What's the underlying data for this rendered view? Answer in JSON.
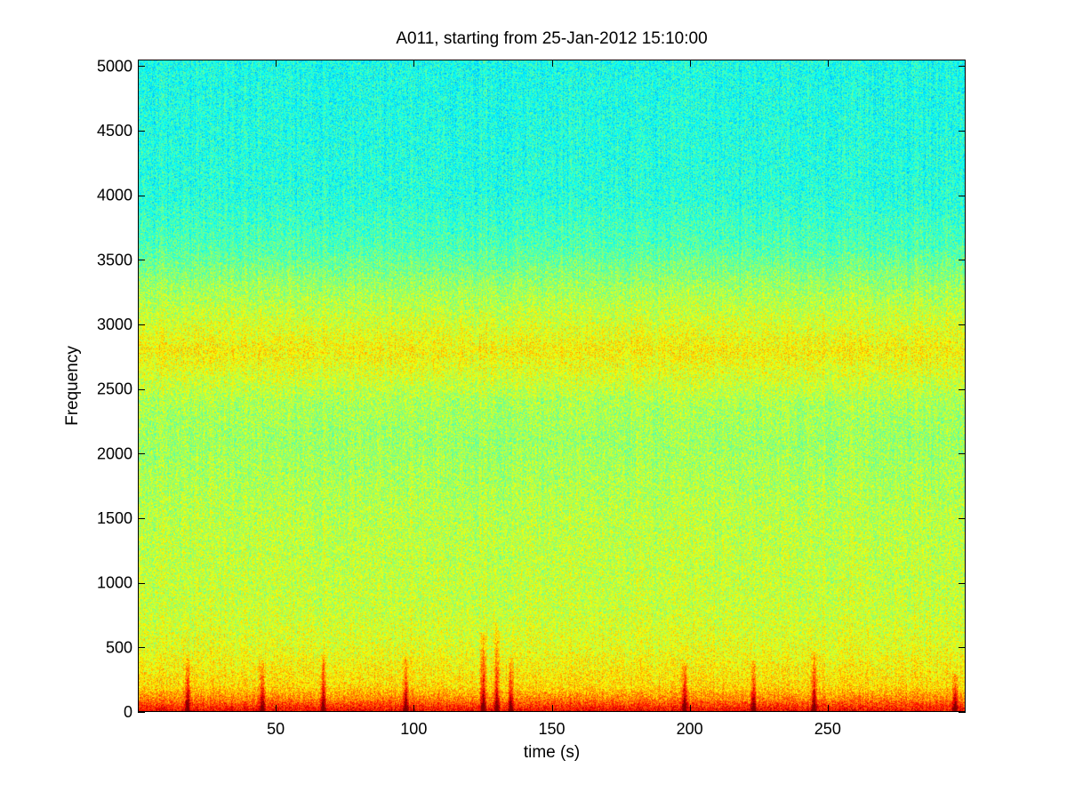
{
  "chart_data": {
    "type": "heatmap",
    "title": "A011, starting from 25-Jan-2012 15:10:00",
    "xlabel": "time (s)",
    "ylabel": "Frequency",
    "xlim": [
      0,
      300
    ],
    "ylim": [
      0,
      5050
    ],
    "x_ticks": [
      50,
      100,
      150,
      200,
      250
    ],
    "y_ticks": [
      0,
      500,
      1000,
      1500,
      2000,
      2500,
      3000,
      3500,
      4000,
      4500,
      5000
    ],
    "colormap": "jet",
    "colorscale_range": [
      0.45,
      0.82
    ],
    "intensity_profile": {
      "frequency": [
        0,
        100,
        200,
        500,
        800,
        1500,
        2100,
        2400,
        2600,
        2800,
        3000,
        3300,
        3600,
        4000,
        5050
      ],
      "level": [
        0.82,
        0.72,
        0.66,
        0.62,
        0.6,
        0.59,
        0.57,
        0.58,
        0.61,
        0.64,
        0.61,
        0.57,
        0.52,
        0.49,
        0.48
      ]
    },
    "bursts": [
      {
        "time": 18,
        "fmax": 420
      },
      {
        "time": 45,
        "fmax": 400
      },
      {
        "time": 67,
        "fmax": 450
      },
      {
        "time": 97,
        "fmax": 440
      },
      {
        "time": 125,
        "fmax": 620
      },
      {
        "time": 130,
        "fmax": 700
      },
      {
        "time": 135,
        "fmax": 420
      },
      {
        "time": 198,
        "fmax": 380
      },
      {
        "time": 223,
        "fmax": 400
      },
      {
        "time": 245,
        "fmax": 480
      },
      {
        "time": 296,
        "fmax": 300
      }
    ]
  }
}
